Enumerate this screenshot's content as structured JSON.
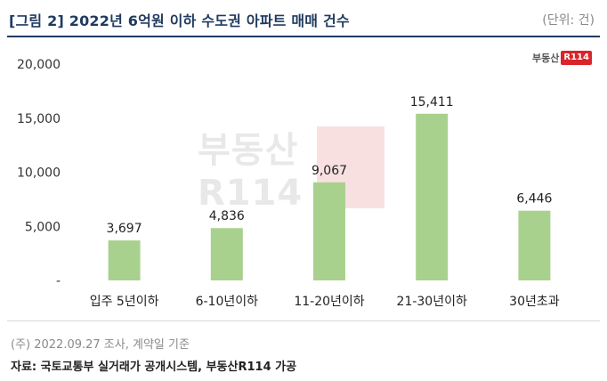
{
  "header": {
    "title": "[그림 2] 2022년 6억원 이하 수도권 아파트 매매 건수",
    "unit": "(단위: 건)"
  },
  "logo": {
    "text": "부동산",
    "badge": "R114"
  },
  "watermark": {
    "text": "부동산R114"
  },
  "footer": {
    "note": "(주) 2022.09.27 조사, 계약일 기준",
    "source": "자료: 국토교통부 실거래가 공개시스템, 부동산R114 가공"
  },
  "colors": {
    "bar": "#a9d18e",
    "title": "#1f3a5f",
    "logo_red": "#d9252a"
  },
  "chart_data": {
    "type": "bar",
    "categories": [
      "입주 5년이하",
      "6-10년이하",
      "11-20년이하",
      "21-30년이하",
      "30년초과"
    ],
    "values": [
      3697,
      4836,
      9067,
      15411,
      6446
    ],
    "value_labels": [
      "3,697",
      "4,836",
      "9,067",
      "15,411",
      "6,446"
    ],
    "y_ticks": [
      0,
      5000,
      10000,
      15000,
      20000
    ],
    "y_tick_labels": [
      "-",
      "5,000",
      "10,000",
      "15,000",
      "20,000"
    ],
    "ylim": [
      0,
      20000
    ],
    "grid": false,
    "legend": "none"
  }
}
